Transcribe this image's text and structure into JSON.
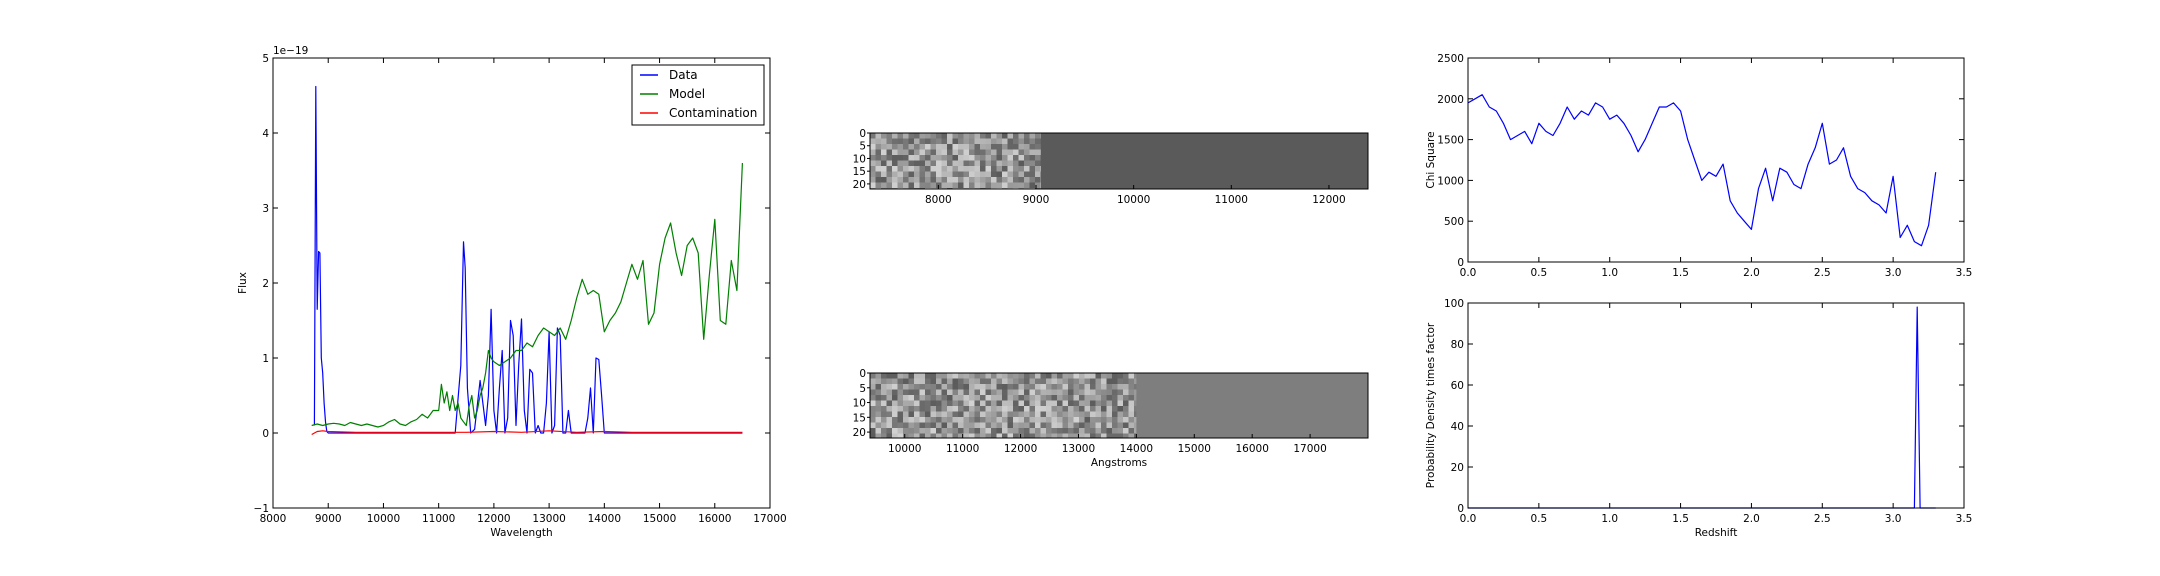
{
  "colors": {
    "data": "#0000ff",
    "model": "#008000",
    "contamination": "#ff0000",
    "axis": "#000000",
    "stamp_background": "#5a5a5a",
    "stamp2_background": "#7e7e7e"
  },
  "chart_data": [
    {
      "id": "spectrum",
      "type": "line",
      "xlabel": "Wavelength",
      "ylabel": "Flux",
      "offset_text": "1e−19",
      "xlim": [
        8000,
        17000
      ],
      "ylim": [
        -1,
        5
      ],
      "xticks": [
        "8000",
        "9000",
        "10000",
        "11000",
        "12000",
        "13000",
        "14000",
        "15000",
        "16000",
        "17000"
      ],
      "yticks": [
        "−1",
        "0",
        "1",
        "2",
        "3",
        "4",
        "5"
      ],
      "legend_placement": "upper right",
      "series": [
        {
          "name": "Data",
          "color": "#0000ff",
          "x": [
            8750,
            8775,
            8800,
            8825,
            8850,
            8875,
            8900,
            8925,
            8950,
            8975,
            9000,
            9050,
            9100,
            11000,
            11150,
            11300,
            11400,
            11450,
            11480,
            11520,
            11580,
            11650,
            11750,
            11850,
            11900,
            11950,
            12000,
            12050,
            12100,
            12150,
            12200,
            12250,
            12300,
            12350,
            12400,
            12450,
            12500,
            12550,
            12600,
            12650,
            12700,
            12750,
            12800,
            12850,
            12900,
            12950,
            13000,
            13050,
            13100,
            13150,
            13200,
            13250,
            13300,
            13350,
            13400,
            13450,
            13500,
            13550,
            13600,
            13650,
            13700,
            13750,
            13800,
            13850,
            13900,
            13950,
            14000,
            14050,
            14100,
            16500
          ],
          "y": [
            0.1,
            4.62,
            1.65,
            2.42,
            2.4,
            1.0,
            0.8,
            0.4,
            0.15,
            0.02,
            0.0,
            0.0,
            0.0,
            0.0,
            0.0,
            0.0,
            0.9,
            2.55,
            2.2,
            0.6,
            0.0,
            0.05,
            0.7,
            0.1,
            0.5,
            1.65,
            0.3,
            0.0,
            0.6,
            1.1,
            0.0,
            0.2,
            1.5,
            1.3,
            0.1,
            0.9,
            1.52,
            0.3,
            0.0,
            0.85,
            0.8,
            0.0,
            0.1,
            0.0,
            0.0,
            0.4,
            1.35,
            0.0,
            0.1,
            1.4,
            1.3,
            0.0,
            0.0,
            0.3,
            0.0,
            0.0,
            0.0,
            0.0,
            0.0,
            0.0,
            0.2,
            0.6,
            0.0,
            1.0,
            0.98,
            0.5,
            0.0,
            0.0,
            0.0,
            0.0
          ]
        },
        {
          "name": "Model",
          "color": "#008000",
          "x": [
            8700,
            8800,
            8900,
            9000,
            9100,
            9200,
            9300,
            9400,
            9500,
            9600,
            9700,
            9800,
            9900,
            10000,
            10100,
            10200,
            10300,
            10400,
            10500,
            10600,
            10700,
            10800,
            10900,
            11000,
            11050,
            11100,
            11150,
            11200,
            11250,
            11300,
            11350,
            11400,
            11450,
            11500,
            11550,
            11600,
            11650,
            11700,
            11750,
            11800,
            11850,
            11900,
            11950,
            12000,
            12100,
            12200,
            12300,
            12400,
            12500,
            12600,
            12700,
            12800,
            12900,
            13000,
            13100,
            13200,
            13300,
            13400,
            13500,
            13600,
            13700,
            13800,
            13900,
            14000,
            14100,
            14200,
            14300,
            14400,
            14500,
            14600,
            14700,
            14800,
            14900,
            15000,
            15100,
            15200,
            15300,
            15400,
            15500,
            15600,
            15700,
            15800,
            15900,
            16000,
            16100,
            16200,
            16300,
            16400,
            16500
          ],
          "y": [
            0.1,
            0.12,
            0.1,
            0.12,
            0.13,
            0.12,
            0.1,
            0.14,
            0.12,
            0.1,
            0.12,
            0.1,
            0.08,
            0.1,
            0.15,
            0.18,
            0.12,
            0.1,
            0.15,
            0.18,
            0.25,
            0.2,
            0.3,
            0.3,
            0.65,
            0.4,
            0.55,
            0.3,
            0.5,
            0.3,
            0.4,
            0.2,
            0.15,
            0.1,
            0.35,
            0.5,
            0.2,
            0.3,
            0.5,
            0.6,
            0.8,
            1.1,
            1.0,
            0.95,
            0.9,
            0.95,
            1.0,
            1.1,
            1.1,
            1.2,
            1.15,
            1.3,
            1.4,
            1.35,
            1.3,
            1.4,
            1.25,
            1.5,
            1.8,
            2.05,
            1.85,
            1.9,
            1.85,
            1.35,
            1.5,
            1.6,
            1.75,
            2.0,
            2.25,
            2.05,
            2.3,
            1.45,
            1.6,
            2.25,
            2.6,
            2.8,
            2.4,
            2.1,
            2.5,
            2.6,
            2.4,
            1.25,
            2.1,
            2.85,
            1.5,
            1.45,
            2.3,
            1.9,
            3.6
          ]
        },
        {
          "name": "Contamination",
          "color": "#ff0000",
          "x": [
            8700,
            8800,
            8900,
            9000,
            9500,
            10000,
            10500,
            11000,
            11500,
            12000,
            12500,
            13000,
            13500,
            14000,
            14500,
            15000,
            15500,
            16000,
            16500
          ],
          "y": [
            -0.02,
            0.02,
            0.03,
            0.02,
            0.01,
            0.01,
            0.01,
            0.01,
            0.01,
            0.02,
            0.01,
            0.03,
            0.01,
            0.02,
            0.01,
            0.01,
            0.01,
            0.01,
            0.01
          ]
        }
      ]
    },
    {
      "id": "stamp1",
      "type": "heatmap",
      "xlim": [
        7300,
        12400
      ],
      "xticks": [
        "8000",
        "9000",
        "10000",
        "11000",
        "12000"
      ],
      "yticks": [
        "0",
        "5",
        "10",
        "15",
        "20"
      ],
      "ylim": [
        0,
        22
      ],
      "noise_extent_x": [
        7300,
        9050
      ]
    },
    {
      "id": "stamp2",
      "type": "heatmap",
      "xlabel": "Angstroms",
      "xlim": [
        9400,
        18000
      ],
      "xticks": [
        "10000",
        "11000",
        "12000",
        "13000",
        "14000",
        "15000",
        "16000",
        "17000"
      ],
      "yticks": [
        "0",
        "5",
        "10",
        "15",
        "20"
      ],
      "ylim": [
        0,
        22
      ],
      "noise_extent_x": [
        9400,
        14000
      ]
    },
    {
      "id": "chisquare",
      "type": "line",
      "ylabel": "Chi Square",
      "xlim": [
        0.0,
        3.5
      ],
      "ylim": [
        0,
        2500
      ],
      "xticks": [
        "0.0",
        "0.5",
        "1.0",
        "1.5",
        "2.0",
        "2.5",
        "3.0",
        "3.5"
      ],
      "yticks": [
        "0",
        "500",
        "1000",
        "1500",
        "2000",
        "2500"
      ],
      "series": [
        {
          "color": "#0000ff",
          "x": [
            0.0,
            0.05,
            0.1,
            0.15,
            0.2,
            0.25,
            0.3,
            0.35,
            0.4,
            0.45,
            0.5,
            0.55,
            0.6,
            0.65,
            0.7,
            0.75,
            0.8,
            0.85,
            0.9,
            0.95,
            1.0,
            1.05,
            1.1,
            1.15,
            1.2,
            1.25,
            1.3,
            1.35,
            1.4,
            1.45,
            1.5,
            1.55,
            1.6,
            1.65,
            1.7,
            1.75,
            1.8,
            1.85,
            1.9,
            1.95,
            2.0,
            2.05,
            2.1,
            2.15,
            2.2,
            2.25,
            2.3,
            2.35,
            2.4,
            2.45,
            2.5,
            2.55,
            2.6,
            2.65,
            2.7,
            2.75,
            2.8,
            2.85,
            2.9,
            2.95,
            3.0,
            3.05,
            3.1,
            3.15,
            3.2,
            3.25,
            3.3
          ],
          "y": [
            1950,
            2000,
            2050,
            1900,
            1850,
            1700,
            1500,
            1550,
            1600,
            1450,
            1700,
            1600,
            1550,
            1700,
            1900,
            1750,
            1850,
            1800,
            1950,
            1900,
            1750,
            1800,
            1700,
            1550,
            1350,
            1500,
            1700,
            1900,
            1900,
            1950,
            1850,
            1500,
            1250,
            1000,
            1100,
            1050,
            1200,
            750,
            600,
            500,
            400,
            900,
            1150,
            750,
            1150,
            1100,
            950,
            900,
            1200,
            1400,
            1700,
            1200,
            1250,
            1400,
            1050,
            900,
            850,
            750,
            700,
            600,
            1050,
            300,
            450,
            250,
            200,
            450,
            1100
          ]
        }
      ]
    },
    {
      "id": "pdf",
      "type": "line",
      "xlabel": "Redshift",
      "ylabel": "Probability Density times factor",
      "xlim": [
        0.0,
        3.5
      ],
      "ylim": [
        0,
        100
      ],
      "xticks": [
        "0.0",
        "0.5",
        "1.0",
        "1.5",
        "2.0",
        "2.5",
        "3.0",
        "3.5"
      ],
      "yticks": [
        "0",
        "20",
        "40",
        "60",
        "80",
        "100"
      ],
      "series": [
        {
          "color": "#0000ff",
          "x": [
            0.0,
            3.1,
            3.15,
            3.17,
            3.19,
            3.21,
            3.23,
            3.3
          ],
          "y": [
            0.0,
            0.0,
            0.0,
            98.0,
            0.0,
            0.0,
            0.0,
            0.0
          ]
        }
      ]
    }
  ]
}
